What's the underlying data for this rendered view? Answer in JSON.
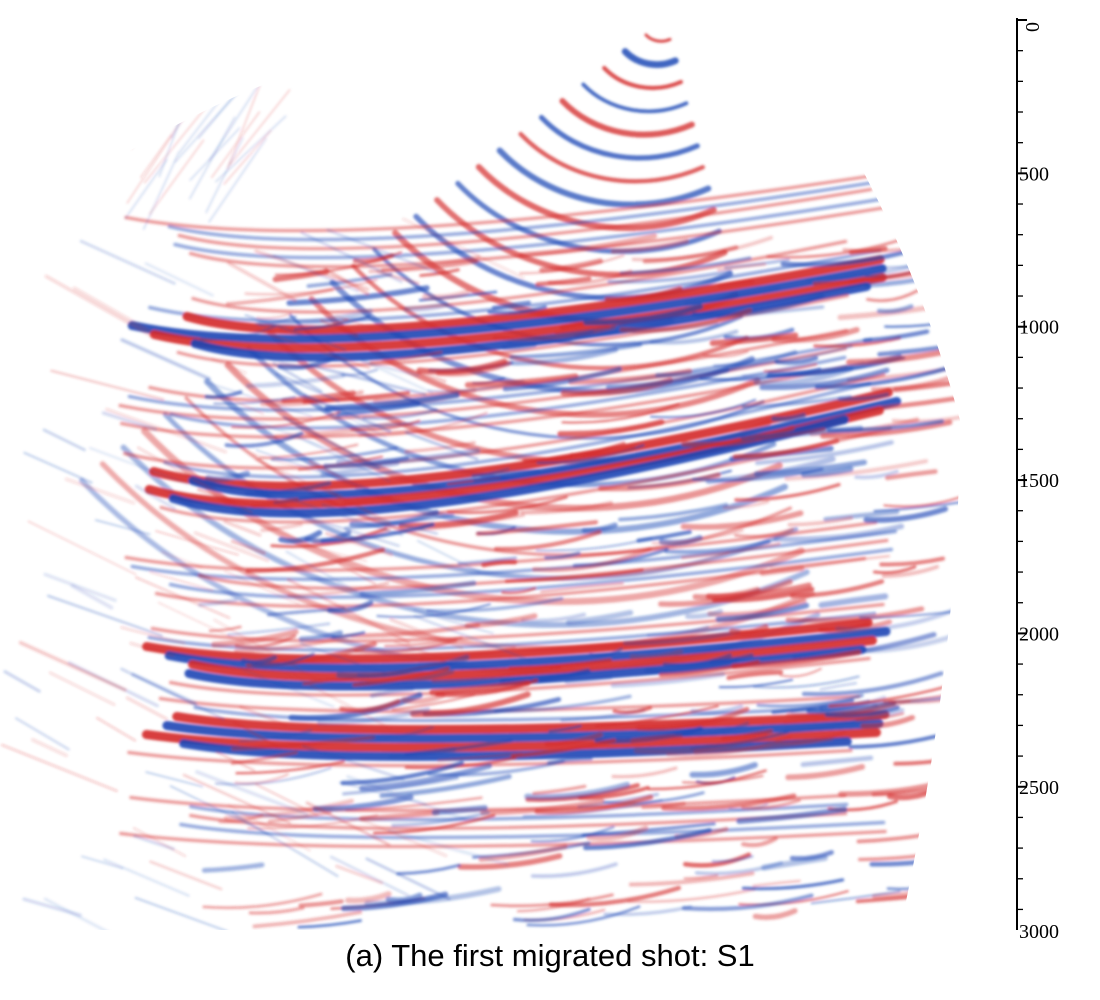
{
  "figure": {
    "caption": "(a) The first migrated shot: S1",
    "colors": {
      "positive": "#d42a2a",
      "negative": "#1c47b5",
      "background": "#ffffff"
    }
  },
  "depth_axis": {
    "min": 0,
    "max": 3000,
    "major_step": 500,
    "minor_step": 100,
    "tick_labels": [
      "0",
      "500",
      "1000",
      "1500",
      "2000",
      "2500",
      "3000"
    ]
  }
}
